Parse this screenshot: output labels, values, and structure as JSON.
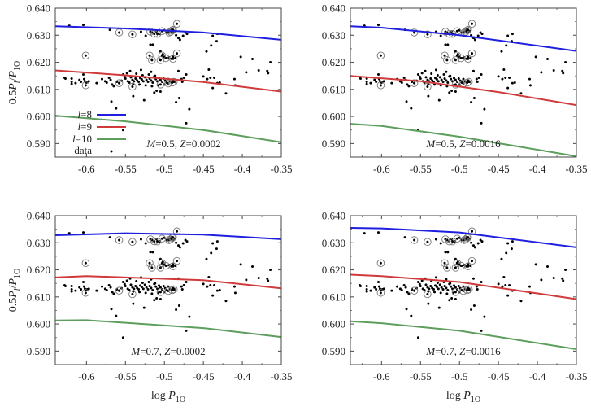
{
  "chart_data": [
    {
      "type": "scatter",
      "panel": "top-left",
      "annotation": {
        "M": "0.5",
        "Z": "0.0002"
      },
      "xlabel": "",
      "ylabel": "0.5P_l/P_1O",
      "xlim": [
        -0.64,
        -0.35
      ],
      "ylim": [
        0.585,
        0.64
      ],
      "legend": [
        "l=8",
        "l=9",
        "l=10",
        "data"
      ],
      "series": [
        {
          "name": "l=8",
          "color": "#1f1fe0",
          "x": [
            -0.64,
            -0.55,
            -0.45,
            -0.35
          ],
          "y": [
            0.6333,
            0.6325,
            0.631,
            0.6283
          ]
        },
        {
          "name": "l=9",
          "color": "#d03a3a",
          "x": [
            -0.64,
            -0.55,
            -0.45,
            -0.35
          ],
          "y": [
            0.617,
            0.6152,
            0.6127,
            0.6092
          ]
        },
        {
          "name": "l=10",
          "color": "#5c9e5c",
          "x": [
            -0.64,
            -0.55,
            -0.45,
            -0.35
          ],
          "y": [
            0.6003,
            0.5982,
            0.595,
            0.5905
          ]
        }
      ]
    },
    {
      "type": "scatter",
      "panel": "top-right",
      "annotation": {
        "M": "0.5",
        "Z": "0.0016"
      },
      "xlim": [
        -0.64,
        -0.35
      ],
      "ylim": [
        0.585,
        0.64
      ],
      "series": [
        {
          "name": "l=8",
          "color": "#1f1fe0",
          "x": [
            -0.64,
            -0.6,
            -0.5,
            -0.35
          ],
          "y": [
            0.6333,
            0.6328,
            0.63,
            0.6242
          ]
        },
        {
          "name": "l=9",
          "color": "#d03a3a",
          "x": [
            -0.64,
            -0.55,
            -0.45,
            -0.35
          ],
          "y": [
            0.615,
            0.613,
            0.609,
            0.6042
          ]
        },
        {
          "name": "l=10",
          "color": "#5c9e5c",
          "x": [
            -0.64,
            -0.6,
            -0.5,
            -0.35
          ],
          "y": [
            0.5973,
            0.5965,
            0.5925,
            0.5853
          ]
        }
      ]
    },
    {
      "type": "scatter",
      "panel": "bottom-left",
      "annotation": {
        "M": "0.7",
        "Z": "0.0002"
      },
      "xlabel": "log P_1O",
      "ylabel": "0.5P_l/P_1O",
      "xlim": [
        -0.64,
        -0.35
      ],
      "ylim": [
        0.585,
        0.64
      ],
      "series": [
        {
          "name": "l=8",
          "color": "#1f1fe0",
          "x": [
            -0.64,
            -0.55,
            -0.45,
            -0.35
          ],
          "y": [
            0.6328,
            0.6335,
            0.633,
            0.6313
          ]
        },
        {
          "name": "l=9",
          "color": "#d03a3a",
          "x": [
            -0.64,
            -0.6,
            -0.45,
            -0.35
          ],
          "y": [
            0.6172,
            0.6177,
            0.6162,
            0.6132
          ]
        },
        {
          "name": "l=10",
          "color": "#5c9e5c",
          "x": [
            -0.64,
            -0.6,
            -0.45,
            -0.35
          ],
          "y": [
            0.6013,
            0.6014,
            0.5985,
            0.5952
          ]
        }
      ]
    },
    {
      "type": "scatter",
      "panel": "bottom-right",
      "annotation": {
        "M": "0.7",
        "Z": "0.0016"
      },
      "xlabel": "log P_1O",
      "xlim": [
        -0.64,
        -0.35
      ],
      "ylim": [
        0.585,
        0.64
      ],
      "series": [
        {
          "name": "l=8",
          "color": "#1f1fe0",
          "x": [
            -0.64,
            -0.6,
            -0.5,
            -0.35
          ],
          "y": [
            0.6355,
            0.6353,
            0.6338,
            0.6283
          ]
        },
        {
          "name": "l=9",
          "color": "#d03a3a",
          "x": [
            -0.64,
            -0.6,
            -0.5,
            -0.35
          ],
          "y": [
            0.6182,
            0.6177,
            0.6155,
            0.6092
          ]
        },
        {
          "name": "l=10",
          "color": "#5c9e5c",
          "x": [
            -0.64,
            -0.6,
            -0.5,
            -0.35
          ],
          "y": [
            0.601,
            0.6003,
            0.5975,
            0.5907
          ]
        }
      ]
    }
  ],
  "axes": {
    "x_ticks": [
      "-0.6",
      "-0.55",
      "-0.5",
      "-0.45",
      "-0.4",
      "-0.35"
    ],
    "x_tick_values": [
      -0.6,
      -0.55,
      -0.5,
      -0.45,
      -0.4,
      -0.35
    ],
    "y_ticks": [
      "0.640",
      "0.630",
      "0.620",
      "0.610",
      "0.600",
      "0.590"
    ],
    "y_tick_values": [
      0.64,
      0.63,
      0.62,
      0.61,
      0.6,
      0.59
    ],
    "xlabel_prefix": "log ",
    "xlabel_var": "P",
    "xlabel_sub": "1O",
    "ylabel_prefix": "0.5",
    "ylabel_var": "P",
    "ylabel_sub_l": "l",
    "ylabel_slash": "/",
    "ylabel_sub": "1O"
  },
  "legend": {
    "items": [
      {
        "label_var": "l",
        "label_rest": "=8",
        "color": "#1f1fe0"
      },
      {
        "label_var": "l",
        "label_rest": "=9",
        "color": "#d03a3a"
      },
      {
        "label_var": "l",
        "label_rest": "=10",
        "color": "#5c9e5c"
      },
      {
        "label_var": "",
        "label_rest": "data",
        "color": "#000000"
      }
    ]
  },
  "annotations": [
    {
      "M_label": "M",
      "M_val": "=0.5, ",
      "Z_label": "Z",
      "Z_val": "=0.0002"
    },
    {
      "M_label": "M",
      "M_val": "=0.5, ",
      "Z_label": "Z",
      "Z_val": "=0.0016"
    },
    {
      "M_label": "M",
      "M_val": "=0.7, ",
      "Z_label": "Z",
      "Z_val": "=0.0002"
    },
    {
      "M_label": "M",
      "M_val": "=0.7, ",
      "Z_label": "Z",
      "Z_val": "=0.0016"
    }
  ],
  "data_points": {
    "scatter": [
      [
        -0.628,
        0.6143
      ],
      [
        -0.627,
        0.614
      ],
      [
        -0.619,
        0.614
      ],
      [
        -0.619,
        0.6128
      ],
      [
        -0.619,
        0.612
      ],
      [
        -0.614,
        0.6123
      ],
      [
        -0.609,
        0.6135
      ],
      [
        -0.607,
        0.6128
      ],
      [
        -0.604,
        0.6155
      ],
      [
        -0.603,
        0.6138
      ],
      [
        -0.602,
        0.613
      ],
      [
        -0.6,
        0.6125
      ],
      [
        -0.599,
        0.6128
      ],
      [
        -0.597,
        0.613
      ],
      [
        -0.587,
        0.6123
      ],
      [
        -0.58,
        0.6138
      ],
      [
        -0.576,
        0.613
      ],
      [
        -0.574,
        0.6125
      ],
      [
        -0.571,
        0.6143
      ],
      [
        -0.569,
        0.6135
      ],
      [
        -0.567,
        0.6118
      ],
      [
        -0.565,
        0.6112
      ],
      [
        -0.561,
        0.6128
      ],
      [
        -0.558,
        0.6123
      ],
      [
        -0.555,
        0.6132
      ],
      [
        -0.553,
        0.6155
      ],
      [
        -0.551,
        0.6147
      ],
      [
        -0.55,
        0.614
      ],
      [
        -0.548,
        0.616
      ],
      [
        -0.547,
        0.613
      ],
      [
        -0.545,
        0.6125
      ],
      [
        -0.543,
        0.6145
      ],
      [
        -0.541,
        0.6135
      ],
      [
        -0.539,
        0.613
      ],
      [
        -0.537,
        0.614
      ],
      [
        -0.535,
        0.6133
      ],
      [
        -0.533,
        0.6128
      ],
      [
        -0.531,
        0.6142
      ],
      [
        -0.529,
        0.6137
      ],
      [
        -0.527,
        0.613
      ],
      [
        -0.525,
        0.6145
      ],
      [
        -0.523,
        0.6135
      ],
      [
        -0.521,
        0.6128
      ],
      [
        -0.519,
        0.614
      ],
      [
        -0.517,
        0.6133
      ],
      [
        -0.515,
        0.6125
      ],
      [
        -0.513,
        0.6148
      ],
      [
        -0.511,
        0.6138
      ],
      [
        -0.509,
        0.613
      ],
      [
        -0.507,
        0.6142
      ],
      [
        -0.505,
        0.6135
      ],
      [
        -0.503,
        0.6128
      ],
      [
        -0.501,
        0.614
      ],
      [
        -0.499,
        0.6132
      ],
      [
        -0.497,
        0.6125
      ],
      [
        -0.495,
        0.6138
      ],
      [
        -0.493,
        0.613
      ],
      [
        -0.491,
        0.6127
      ],
      [
        -0.489,
        0.6132
      ],
      [
        -0.487,
        0.6128
      ],
      [
        -0.536,
        0.6158
      ],
      [
        -0.528,
        0.6152
      ],
      [
        -0.52,
        0.6155
      ],
      [
        -0.512,
        0.615
      ],
      [
        -0.532,
        0.6118
      ],
      [
        -0.524,
        0.6115
      ],
      [
        -0.516,
        0.6112
      ],
      [
        -0.508,
        0.6115
      ],
      [
        -0.5,
        0.6118
      ],
      [
        -0.54,
        0.612
      ],
      [
        -0.544,
        0.6168
      ],
      [
        -0.53,
        0.6172
      ],
      [
        -0.517,
        0.6165
      ],
      [
        -0.51,
        0.6095
      ],
      [
        -0.513,
        0.6088
      ],
      [
        -0.505,
        0.6092
      ],
      [
        -0.54,
        0.6075
      ],
      [
        -0.526,
        0.606
      ],
      [
        -0.568,
        0.6055
      ],
      [
        -0.562,
        0.603
      ],
      [
        -0.553,
        0.595
      ],
      [
        -0.485,
        0.6053
      ],
      [
        -0.481,
        0.6068
      ],
      [
        -0.472,
        0.5975
      ],
      [
        -0.468,
        0.6027
      ],
      [
        -0.482,
        0.6168
      ],
      [
        -0.478,
        0.6138
      ],
      [
        -0.475,
        0.6143
      ],
      [
        -0.472,
        0.6155
      ],
      [
        -0.477,
        0.6128
      ],
      [
        -0.45,
        0.6148
      ],
      [
        -0.445,
        0.6138
      ],
      [
        -0.443,
        0.6173
      ],
      [
        -0.441,
        0.6143
      ],
      [
        -0.438,
        0.6105
      ],
      [
        -0.436,
        0.6143
      ],
      [
        -0.432,
        0.6123
      ],
      [
        -0.429,
        0.6125
      ],
      [
        -0.421,
        0.6085
      ],
      [
        -0.41,
        0.6138
      ],
      [
        -0.409,
        0.6115
      ],
      [
        -0.402,
        0.622
      ],
      [
        -0.395,
        0.6163
      ],
      [
        -0.387,
        0.6212
      ],
      [
        -0.379,
        0.617
      ],
      [
        -0.368,
        0.6168
      ],
      [
        -0.367,
        0.616
      ],
      [
        -0.364,
        0.62
      ],
      [
        -0.446,
        0.624
      ],
      [
        -0.44,
        0.6262
      ],
      [
        -0.438,
        0.6298
      ],
      [
        -0.433,
        0.6278
      ],
      [
        -0.432,
        0.6305
      ],
      [
        -0.622,
        0.6335
      ],
      [
        -0.604,
        0.6338
      ],
      [
        -0.57,
        0.632
      ],
      [
        -0.53,
        0.6313
      ],
      [
        -0.524,
        0.6298
      ],
      [
        -0.516,
        0.631
      ],
      [
        -0.51,
        0.6313
      ],
      [
        -0.506,
        0.6305
      ],
      [
        -0.5,
        0.6318
      ],
      [
        -0.497,
        0.631
      ],
      [
        -0.494,
        0.6313
      ],
      [
        -0.491,
        0.632
      ],
      [
        -0.489,
        0.6308
      ],
      [
        -0.487,
        0.6315
      ],
      [
        -0.485,
        0.63
      ],
      [
        -0.482,
        0.629
      ],
      [
        -0.48,
        0.6283
      ],
      [
        -0.476,
        0.6298
      ],
      [
        -0.473,
        0.631
      ],
      [
        -0.471,
        0.6305
      ],
      [
        -0.518,
        0.6265
      ],
      [
        -0.515,
        0.6265
      ],
      [
        -0.505,
        0.624
      ],
      [
        -0.5,
        0.622
      ],
      [
        -0.497,
        0.6215
      ],
      [
        -0.494,
        0.6218
      ],
      [
        -0.491,
        0.6213
      ],
      [
        -0.489,
        0.622
      ],
      [
        -0.486,
        0.6215
      ],
      [
        -0.502,
        0.623
      ]
    ],
    "circled": [
      [
        -0.601,
        0.6225
      ],
      [
        -0.601,
        0.6115
      ],
      [
        -0.558,
        0.631
      ],
      [
        -0.541,
        0.6303
      ],
      [
        -0.558,
        0.6123
      ],
      [
        -0.541,
        0.611
      ],
      [
        -0.519,
        0.6225
      ],
      [
        -0.516,
        0.6208
      ],
      [
        -0.518,
        0.6313
      ],
      [
        -0.513,
        0.6305
      ],
      [
        -0.509,
        0.6305
      ],
      [
        -0.505,
        0.6208
      ],
      [
        -0.503,
        0.6225
      ],
      [
        -0.503,
        0.6315
      ],
      [
        -0.498,
        0.6215
      ],
      [
        -0.494,
        0.631
      ],
      [
        -0.492,
        0.6313
      ],
      [
        -0.49,
        0.6318
      ],
      [
        -0.489,
        0.632
      ],
      [
        -0.484,
        0.6342
      ],
      [
        -0.484,
        0.6233
      ],
      [
        -0.489,
        0.6213
      ],
      [
        -0.505,
        0.6118
      ],
      [
        -0.495,
        0.6122
      ],
      [
        -0.49,
        0.6125
      ],
      [
        -0.488,
        0.6128
      ]
    ]
  }
}
